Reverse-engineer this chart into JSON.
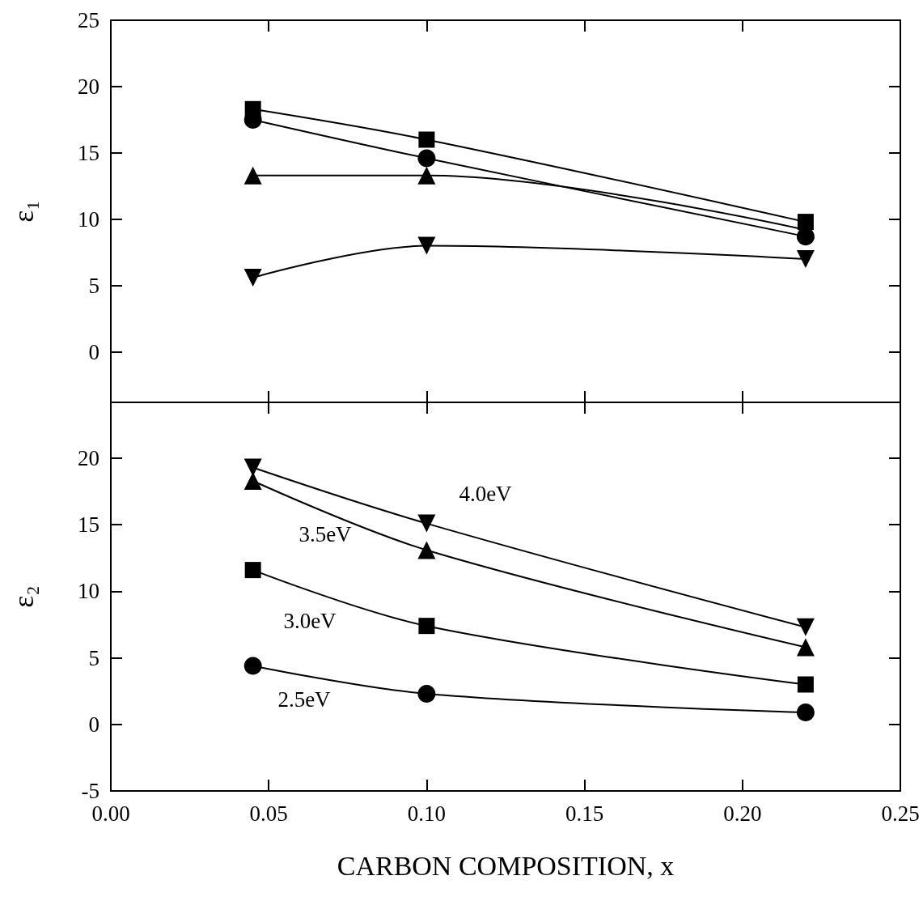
{
  "chart_data": [
    {
      "type": "line",
      "ylabel": "ε₁",
      "xlim": [
        0,
        0.25
      ],
      "ylim": [
        -3.8,
        25
      ],
      "xticks": [
        0,
        0.05,
        0.1,
        0.15,
        0.2,
        0.25
      ],
      "yticks": [
        0,
        5,
        10,
        15,
        20,
        25
      ],
      "tick_labels": "y",
      "line_style": "solid",
      "x": [
        0.045,
        0.1,
        0.22
      ],
      "series": [
        {
          "color": "#000000",
          "marker": "square",
          "values": [
            18.3,
            16.0,
            9.8
          ]
        },
        {
          "color": "#000000",
          "marker": "circle",
          "values": [
            17.5,
            14.6,
            8.7
          ]
        },
        {
          "color": "#000000",
          "marker": "triangle",
          "values": [
            13.3,
            13.3,
            9.2
          ]
        },
        {
          "color": "#000000",
          "marker": "triangle-down",
          "values": [
            5.6,
            8.0,
            7.0
          ]
        }
      ]
    },
    {
      "type": "line",
      "xlabel": "CARBON COMPOSITION, x",
      "ylabel": "ε₂",
      "xlim": [
        0,
        0.25
      ],
      "ylim": [
        -5,
        24.2
      ],
      "xticks": [
        {
          "value": 0,
          "label": "0.00"
        },
        0.05,
        {
          "value": 0.1,
          "label": "0.10"
        },
        0.15,
        {
          "value": 0.2,
          "label": "0.20"
        },
        0.25
      ],
      "yticks": [
        -5,
        0,
        5,
        10,
        15,
        20
      ],
      "line_style": "solid",
      "x": [
        0.045,
        0.1,
        0.22
      ],
      "series": [
        {
          "color": "#000000",
          "marker": "triangle-down",
          "values": [
            19.3,
            15.1,
            7.3
          ]
        },
        {
          "color": "#000000",
          "marker": "triangle",
          "values": [
            18.3,
            13.1,
            5.8
          ]
        },
        {
          "color": "#000000",
          "marker": "square",
          "values": [
            11.6,
            7.4,
            3.0
          ]
        },
        {
          "color": "#000000",
          "marker": "circle",
          "values": [
            4.4,
            2.3,
            0.9
          ]
        }
      ],
      "annotations": [
        "4.0eV",
        "3.5eV",
        "3.0eV",
        "2.5eV"
      ]
    }
  ]
}
